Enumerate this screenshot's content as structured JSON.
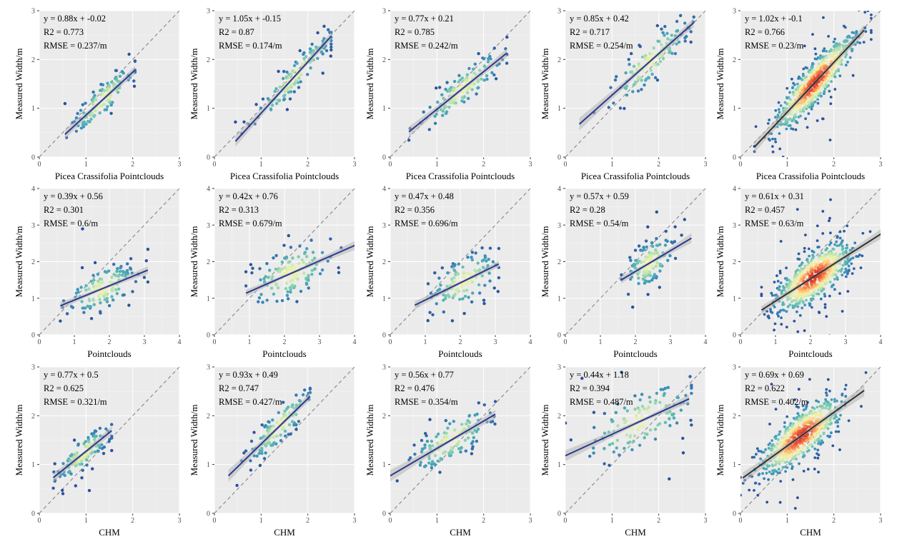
{
  "colors": {
    "panel_bg": "#ebebeb",
    "grid_major": "#ffffff",
    "fit_line_blue": "#2b3a8f",
    "fit_line_dark": "#333333",
    "identity_line": "#7f7f7f",
    "ci_band": "#b5b5b5",
    "palette_spectral_low_to_high": [
      "#2b4e9b",
      "#3a8fbd",
      "#5fbcb0",
      "#a8dcb0",
      "#e6f2a6",
      "#fee99a",
      "#fdae61",
      "#f46d43",
      "#d73027"
    ]
  },
  "chart_data": [
    {
      "type": "scatter",
      "row": 1,
      "col": 1,
      "density": "low",
      "xlabel": "Picea Crassifolia Pointclouds",
      "ylabel": "Measured Width/m",
      "xlim": [
        0,
        3
      ],
      "ylim": [
        0,
        3
      ],
      "xticks": [
        0,
        1,
        2,
        3
      ],
      "yticks": [
        0,
        1,
        2,
        3
      ],
      "identity_line": true,
      "fit": {
        "slope": 0.88,
        "intercept": -0.02,
        "x_range": [
          0.55,
          2.05
        ]
      },
      "stats": {
        "equation": "y = 0.88x + -0.02",
        "r2": "R2 = 0.773",
        "rmse": "RMSE = 0.237/m"
      },
      "point_cloud": {
        "x_center": 1.35,
        "x_sd": 0.35,
        "resid_sd": 0.17,
        "x_range": [
          0.55,
          2.05
        ],
        "n": 130
      }
    },
    {
      "type": "scatter",
      "row": 1,
      "col": 2,
      "density": "low",
      "xlabel": "Picea Crassifolia Pointclouds",
      "ylabel": "Measured Width/m",
      "xlim": [
        0,
        3
      ],
      "ylim": [
        0,
        3
      ],
      "xticks": [
        0,
        1,
        2,
        3
      ],
      "yticks": [
        0,
        1,
        2,
        3
      ],
      "identity_line": true,
      "fit": {
        "slope": 1.05,
        "intercept": -0.15,
        "x_range": [
          0.45,
          2.5
        ]
      },
      "stats": {
        "equation": "y = 1.05x + -0.15",
        "r2": "R2 = 0.87",
        "rmse": "RMSE = 0.174/m"
      },
      "point_cloud": {
        "x_center": 1.7,
        "x_sd": 0.45,
        "resid_sd": 0.15,
        "x_range": [
          0.45,
          2.5
        ],
        "n": 130
      }
    },
    {
      "type": "scatter",
      "row": 1,
      "col": 3,
      "density": "low",
      "xlabel": "Picea Crassifolia Pointclouds",
      "ylabel": "Measured Width/m",
      "xlim": [
        0,
        3
      ],
      "ylim": [
        0,
        3
      ],
      "xticks": [
        0,
        1,
        2,
        3
      ],
      "yticks": [
        0,
        1,
        2,
        3
      ],
      "identity_line": true,
      "fit": {
        "slope": 0.77,
        "intercept": 0.21,
        "x_range": [
          0.4,
          2.5
        ]
      },
      "stats": {
        "equation": "y = 0.77x + 0.21",
        "r2": "R2 = 0.785",
        "rmse": "RMSE = 0.242/m"
      },
      "point_cloud": {
        "x_center": 1.55,
        "x_sd": 0.45,
        "resid_sd": 0.18,
        "x_range": [
          0.4,
          2.5
        ],
        "n": 130
      }
    },
    {
      "type": "scatter",
      "row": 1,
      "col": 4,
      "density": "low",
      "xlabel": "Picea Crassifolia Pointclouds",
      "ylabel": "Measured Width/m",
      "xlim": [
        0,
        3
      ],
      "ylim": [
        0,
        3
      ],
      "xticks": [
        0,
        1,
        2,
        3
      ],
      "yticks": [
        0,
        1,
        2,
        3
      ],
      "identity_line": true,
      "fit": {
        "slope": 0.85,
        "intercept": 0.42,
        "x_range": [
          0.3,
          2.75
        ]
      },
      "stats": {
        "equation": "y = 0.85x + 0.42",
        "r2": "R2 = 0.717",
        "rmse": "RMSE = 0.254/m"
      },
      "point_cloud": {
        "x_center": 1.8,
        "x_sd": 0.45,
        "resid_sd": 0.22,
        "x_range": [
          0.3,
          2.75
        ],
        "n": 130
      }
    },
    {
      "type": "scatter",
      "row": 1,
      "col": 5,
      "density": "high",
      "xlabel": "Picea Crassifolia Pointclouds",
      "ylabel": "Measured Width/m",
      "xlim": [
        0,
        3
      ],
      "ylim": [
        0,
        3
      ],
      "xticks": [
        0,
        1,
        2,
        3
      ],
      "yticks": [
        0,
        1,
        2,
        3
      ],
      "identity_line": true,
      "fit": {
        "slope": 1.02,
        "intercept": -0.1,
        "x_range": [
          0.3,
          2.65
        ]
      },
      "stats": {
        "equation": "y = 1.02x + -0.1",
        "r2": "R2 = 0.766",
        "rmse": "RMSE = 0.23/m"
      },
      "point_cloud": {
        "x_center": 1.6,
        "x_sd": 0.45,
        "resid_sd": 0.22,
        "x_range": [
          0.3,
          2.8
        ],
        "n": 650
      }
    },
    {
      "type": "scatter",
      "row": 2,
      "col": 1,
      "density": "low",
      "xlabel": "Pointclouds",
      "ylabel": "Measured Width/m",
      "xlim": [
        0,
        4
      ],
      "ylim": [
        0,
        4
      ],
      "xticks": [
        0,
        1,
        2,
        3,
        4
      ],
      "yticks": [
        0,
        1,
        2,
        3,
        4
      ],
      "identity_line": true,
      "fit": {
        "slope": 0.39,
        "intercept": 0.56,
        "x_range": [
          0.6,
          3.1
        ]
      },
      "stats": {
        "equation": "y = 0.39x + 0.56",
        "r2": "R2 = 0.301",
        "rmse": "RMSE = 0.6/m"
      },
      "point_cloud": {
        "x_center": 1.8,
        "x_sd": 0.5,
        "resid_sd": 0.28,
        "x_range": [
          0.6,
          3.1
        ],
        "n": 130
      }
    },
    {
      "type": "scatter",
      "row": 2,
      "col": 2,
      "density": "low",
      "xlabel": "Pointclouds",
      "ylabel": "Measured Width/m",
      "xlim": [
        0,
        4
      ],
      "ylim": [
        0,
        4
      ],
      "xticks": [
        0,
        1,
        2,
        3,
        4
      ],
      "yticks": [
        0,
        1,
        2,
        3,
        4
      ],
      "identity_line": true,
      "fit": {
        "slope": 0.42,
        "intercept": 0.76,
        "x_range": [
          0.9,
          4.2
        ]
      },
      "stats": {
        "equation": "y = 0.42x + 0.76",
        "r2": "R2 = 0.313",
        "rmse": "RMSE = 0.679/m"
      },
      "point_cloud": {
        "x_center": 2.2,
        "x_sd": 0.6,
        "resid_sd": 0.35,
        "x_range": [
          0.9,
          3.9
        ],
        "n": 130
      }
    },
    {
      "type": "scatter",
      "row": 2,
      "col": 3,
      "density": "low",
      "xlabel": "Pointclouds",
      "ylabel": "Measured Width/m",
      "xlim": [
        0,
        4
      ],
      "ylim": [
        0,
        4
      ],
      "xticks": [
        0,
        1,
        2,
        3,
        4
      ],
      "yticks": [
        0,
        1,
        2,
        3,
        4
      ],
      "identity_line": true,
      "fit": {
        "slope": 0.47,
        "intercept": 0.48,
        "x_range": [
          0.7,
          3.1
        ]
      },
      "stats": {
        "equation": "y = 0.47x + 0.48",
        "r2": "R2 = 0.356",
        "rmse": "RMSE = 0.696/m"
      },
      "point_cloud": {
        "x_center": 2.1,
        "x_sd": 0.5,
        "resid_sd": 0.33,
        "x_range": [
          0.7,
          3.1
        ],
        "n": 130
      }
    },
    {
      "type": "scatter",
      "row": 2,
      "col": 4,
      "density": "low",
      "xlabel": "Pointclouds",
      "ylabel": "Measured Width/m",
      "xlim": [
        0,
        4
      ],
      "ylim": [
        0,
        4
      ],
      "xticks": [
        0,
        1,
        2,
        3,
        4
      ],
      "yticks": [
        0,
        1,
        2,
        3,
        4
      ],
      "identity_line": true,
      "fit": {
        "slope": 0.57,
        "intercept": 0.59,
        "x_range": [
          1.6,
          3.6
        ]
      },
      "stats": {
        "equation": "y = 0.57x + 0.59",
        "r2": "R2 = 0.28",
        "rmse": "RMSE = 0.54/m"
      },
      "point_cloud": {
        "x_center": 2.4,
        "x_sd": 0.35,
        "resid_sd": 0.3,
        "x_range": [
          1.6,
          3.6
        ],
        "n": 130
      }
    },
    {
      "type": "scatter",
      "row": 2,
      "col": 5,
      "density": "high",
      "xlabel": "Pointclouds",
      "ylabel": "Measured Width/m",
      "xlim": [
        0,
        4
      ],
      "ylim": [
        0,
        4
      ],
      "xticks": [
        0,
        1,
        2,
        3,
        4
      ],
      "yticks": [
        0,
        1,
        2,
        3,
        4
      ],
      "identity_line": true,
      "fit": {
        "slope": 0.61,
        "intercept": 0.31,
        "x_range": [
          0.6,
          4.2
        ]
      },
      "stats": {
        "equation": "y = 0.61x + 0.31",
        "r2": "R2 = 0.457",
        "rmse": "RMSE = 0.63/m"
      },
      "point_cloud": {
        "x_center": 2.1,
        "x_sd": 0.55,
        "resid_sd": 0.33,
        "x_range": [
          0.6,
          3.9
        ],
        "n": 650
      }
    },
    {
      "type": "scatter",
      "row": 3,
      "col": 1,
      "density": "low",
      "xlabel": "CHM",
      "ylabel": "Measured Width/m",
      "xlim": [
        0,
        3
      ],
      "ylim": [
        0,
        3
      ],
      "xticks": [
        0,
        1,
        2,
        3
      ],
      "yticks": [
        0,
        1,
        2,
        3
      ],
      "identity_line": true,
      "fit": {
        "slope": 0.77,
        "intercept": 0.5,
        "x_range": [
          0.3,
          1.55
        ]
      },
      "stats": {
        "equation": "y = 0.77x + 0.5",
        "r2": "R2 = 0.625",
        "rmse": "RMSE = 0.321/m"
      },
      "point_cloud": {
        "x_center": 0.95,
        "x_sd": 0.3,
        "resid_sd": 0.15,
        "x_range": [
          0.3,
          1.55
        ],
        "n": 130
      }
    },
    {
      "type": "scatter",
      "row": 3,
      "col": 2,
      "density": "low",
      "xlabel": "CHM",
      "ylabel": "Measured Width/m",
      "xlim": [
        0,
        3
      ],
      "ylim": [
        0,
        3
      ],
      "xticks": [
        0,
        1,
        2,
        3
      ],
      "yticks": [
        0,
        1,
        2,
        3
      ],
      "identity_line": true,
      "fit": {
        "slope": 0.93,
        "intercept": 0.49,
        "x_range": [
          0.3,
          2.05
        ]
      },
      "stats": {
        "equation": "y = 0.93x + 0.49",
        "r2": "R2 = 0.747",
        "rmse": "RMSE = 0.427/m"
      },
      "point_cloud": {
        "x_center": 1.4,
        "x_sd": 0.35,
        "resid_sd": 0.18,
        "x_range": [
          0.3,
          2.05
        ],
        "n": 130
      }
    },
    {
      "type": "scatter",
      "row": 3,
      "col": 3,
      "density": "low",
      "xlabel": "CHM",
      "ylabel": "Measured Width/m",
      "xlim": [
        0,
        3
      ],
      "ylim": [
        0,
        3
      ],
      "xticks": [
        0,
        1,
        2,
        3
      ],
      "yticks": [
        0,
        1,
        2,
        3
      ],
      "identity_line": true,
      "fit": {
        "slope": 0.56,
        "intercept": 0.77,
        "x_range": [
          0,
          2.25
        ]
      },
      "stats": {
        "equation": "y = 0.56x + 0.77",
        "r2": "R2 = 0.476",
        "rmse": "RMSE = 0.354/m"
      },
      "point_cloud": {
        "x_center": 1.3,
        "x_sd": 0.45,
        "resid_sd": 0.22,
        "x_range": [
          0,
          2.25
        ],
        "n": 130
      }
    },
    {
      "type": "scatter",
      "row": 3,
      "col": 4,
      "density": "low",
      "xlabel": "CHM",
      "ylabel": "Measured Width/m",
      "xlim": [
        0,
        3
      ],
      "ylim": [
        0,
        3
      ],
      "xticks": [
        0,
        1,
        2,
        3
      ],
      "yticks": [
        0,
        1,
        2,
        3
      ],
      "identity_line": true,
      "fit": {
        "slope": 0.44,
        "intercept": 1.18,
        "x_range": [
          0,
          2.65
        ]
      },
      "stats": {
        "equation": "y = 0.44x + 1.18",
        "r2": "R2 = 0.394",
        "rmse": "RMSE = 0.487/m"
      },
      "point_cloud": {
        "x_center": 1.6,
        "x_sd": 0.6,
        "resid_sd": 0.3,
        "x_range": [
          0,
          2.7
        ],
        "n": 130
      }
    },
    {
      "type": "scatter",
      "row": 3,
      "col": 5,
      "density": "high",
      "xlabel": "CHM",
      "ylabel": "Measured Width/m",
      "xlim": [
        0,
        3
      ],
      "ylim": [
        0,
        3
      ],
      "xticks": [
        0,
        1,
        2,
        3
      ],
      "yticks": [
        0,
        1,
        2,
        3
      ],
      "identity_line": true,
      "fit": {
        "slope": 0.69,
        "intercept": 0.69,
        "x_range": [
          0.05,
          2.65
        ]
      },
      "stats": {
        "equation": "y = 0.69x + 0.69",
        "r2": "R2 = 0.622",
        "rmse": "RMSE = 0.402/m"
      },
      "point_cloud": {
        "x_center": 1.3,
        "x_sd": 0.45,
        "resid_sd": 0.25,
        "x_range": [
          0,
          2.7
        ],
        "n": 650
      }
    }
  ]
}
